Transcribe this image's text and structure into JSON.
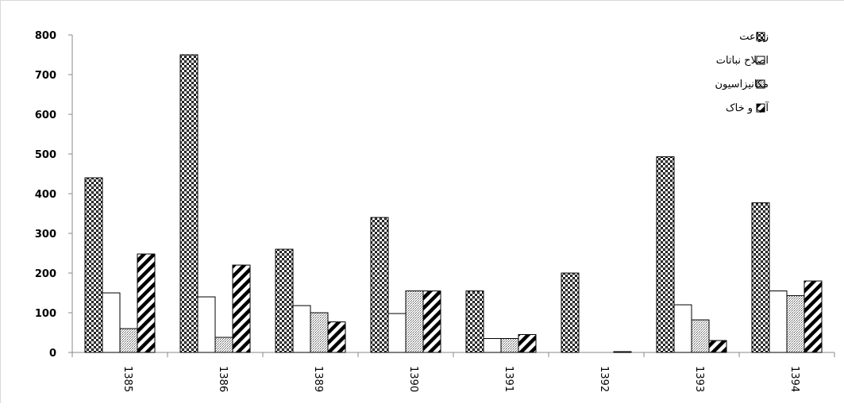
{
  "chart_data": {
    "type": "bar",
    "categories": [
      "1385",
      "1386",
      "1389",
      "1390",
      "1391",
      "1392",
      "1393",
      "1394"
    ],
    "series": [
      {
        "name": "زراعت",
        "pattern": "checker",
        "values": [
          440,
          750,
          260,
          340,
          155,
          200,
          493,
          377
        ]
      },
      {
        "name": "اصلاح نباتات",
        "pattern": "white",
        "values": [
          150,
          140,
          118,
          98,
          35,
          0,
          120,
          155
        ]
      },
      {
        "name": "مکانیزاسیون",
        "pattern": "dots",
        "values": [
          60,
          38,
          100,
          155,
          35,
          0,
          82,
          143
        ]
      },
      {
        "name": "آب و خاک",
        "pattern": "diagonal",
        "values": [
          248,
          220,
          77,
          155,
          45,
          2,
          30,
          180
        ]
      }
    ],
    "y_ticks": [
      "0",
      "100",
      "200",
      "300",
      "400",
      "500",
      "600",
      "700",
      "800"
    ],
    "ylim": [
      0,
      800
    ],
    "legend_position": "top-right",
    "grid": false,
    "title": "",
    "xlabel": "",
    "ylabel": ""
  }
}
